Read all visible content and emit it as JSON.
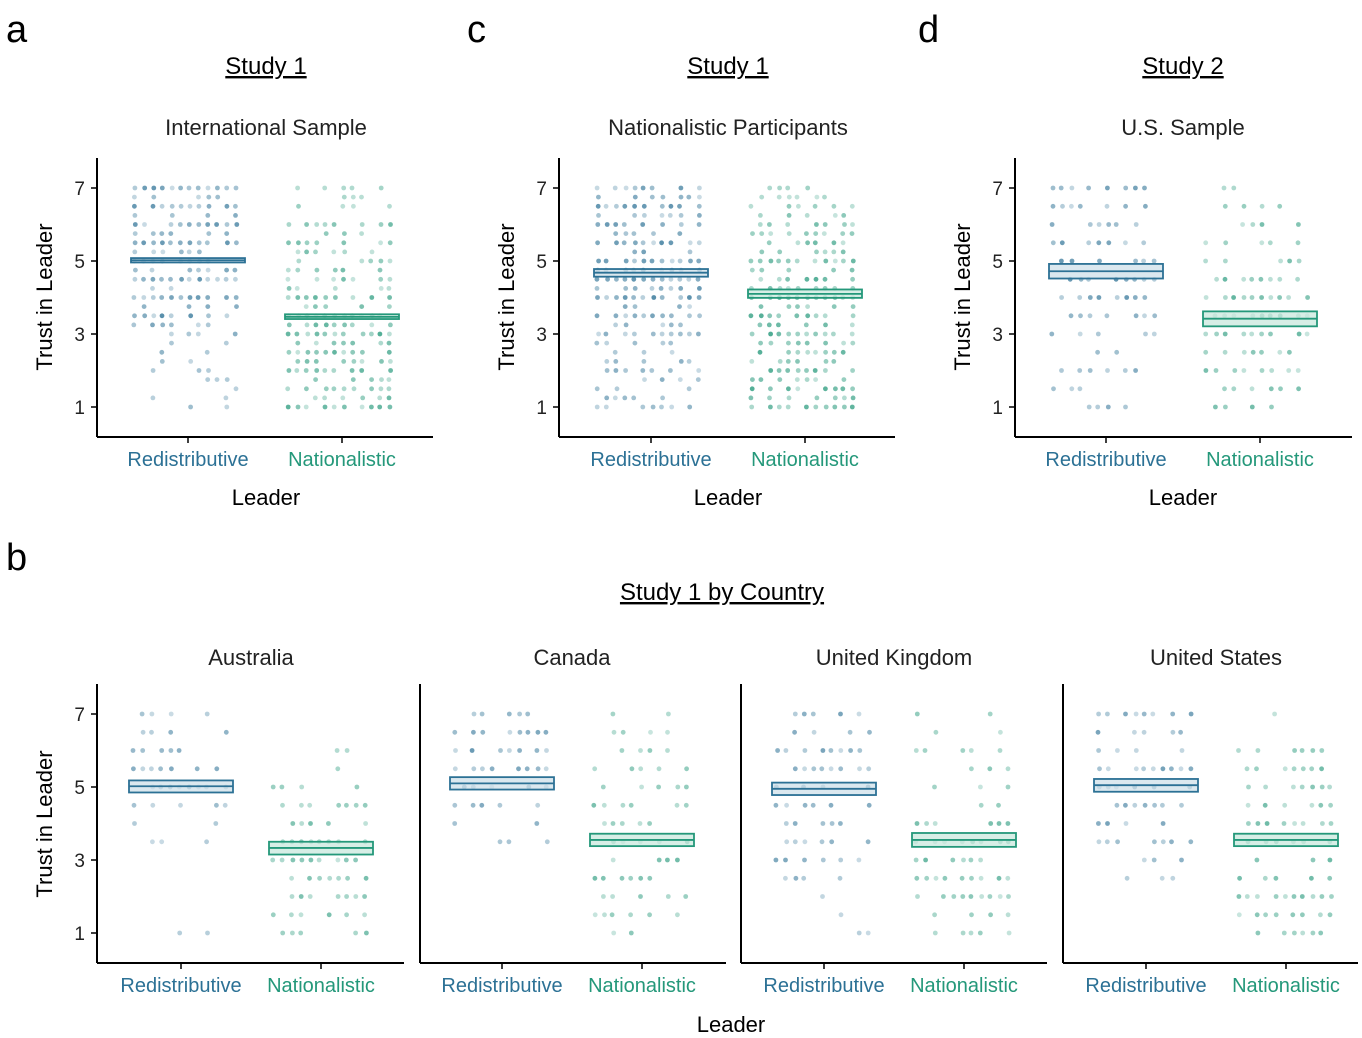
{
  "colors": {
    "redistributive": "#2c7195",
    "nationalistic": "#24987a"
  },
  "panels": [
    {
      "letter": "a",
      "study": "Study 1",
      "subtitle": "International Sample"
    },
    {
      "letter": "c",
      "study": "Study 1",
      "subtitle": "Nationalistic Participants"
    },
    {
      "letter": "d",
      "study": "Study 2",
      "subtitle": "U.S. Sample"
    }
  ],
  "panel_b": {
    "letter": "b",
    "study": "Study 1 by Country"
  },
  "chart_data": [
    {
      "type": "scatter",
      "title": "International Sample",
      "xlabel": "Leader",
      "ylabel": "Trust in Leader",
      "categories": [
        "Redistributive",
        "Nationalistic"
      ],
      "yticks": [
        1,
        3,
        5,
        7
      ],
      "ylim": [
        0.2,
        7.8
      ],
      "means": [
        5.02,
        3.47
      ],
      "ci": [
        [
          4.96,
          5.08
        ],
        [
          3.41,
          3.54
        ]
      ],
      "density": [
        [
          0.25,
          0.2,
          0.15,
          0.25,
          0.25,
          0.2,
          0.35,
          0.3,
          0.45,
          0.5,
          0.7,
          0.5,
          0.85,
          0.55,
          1.0,
          0.5,
          0.8,
          0.4,
          0.85,
          0.45,
          0.85,
          0.4,
          0.8,
          0.4,
          0.85
        ],
        [
          0.85,
          0.55,
          0.6,
          0.55,
          0.85,
          0.6,
          0.8,
          0.6,
          0.85,
          0.6,
          0.85,
          0.55,
          0.85,
          0.5,
          0.7,
          0.5,
          0.6,
          0.45,
          0.5,
          0.35,
          0.45,
          0.25,
          0.3,
          0.25,
          0.35
        ]
      ]
    },
    {
      "type": "scatter",
      "title": "Nationalistic Participants",
      "xlabel": "Leader",
      "ylabel": "Trust in Leader",
      "categories": [
        "Redistributive",
        "Nationalistic"
      ],
      "yticks": [
        1,
        3,
        5,
        7
      ],
      "ylim": [
        0.2,
        7.8
      ],
      "means": [
        4.68,
        4.1
      ],
      "ci": [
        [
          4.57,
          4.78
        ],
        [
          3.99,
          4.22
        ]
      ],
      "density": [
        [
          0.4,
          0.3,
          0.25,
          0.3,
          0.4,
          0.3,
          0.45,
          0.35,
          0.6,
          0.5,
          0.85,
          0.6,
          0.95,
          0.6,
          0.9,
          0.55,
          0.85,
          0.5,
          0.85,
          0.5,
          0.85,
          0.5,
          0.85,
          0.5,
          0.85
        ],
        [
          0.8,
          0.55,
          0.75,
          0.55,
          0.8,
          0.55,
          0.8,
          0.6,
          0.85,
          0.6,
          0.8,
          0.55,
          0.85,
          0.5,
          0.75,
          0.45,
          0.6,
          0.45,
          0.55,
          0.45,
          0.5,
          0.4,
          0.4,
          0.3,
          0.3
        ]
      ]
    },
    {
      "type": "scatter",
      "title": "U.S. Sample",
      "xlabel": "Leader",
      "ylabel": "Trust in Leader",
      "categories": [
        "Redistributive",
        "Nationalistic"
      ],
      "yticks": [
        1,
        3,
        5,
        7
      ],
      "ylim": [
        0.2,
        7.8
      ],
      "means": [
        4.72,
        3.42
      ],
      "ci": [
        [
          4.52,
          4.92
        ],
        [
          3.21,
          3.62
        ]
      ],
      "density": [
        [
          0.35,
          0.0,
          0.2,
          0.0,
          0.35,
          0.0,
          0.35,
          0.0,
          0.45,
          0.0,
          0.55,
          0.0,
          0.75,
          0.0,
          0.65,
          0.0,
          0.7,
          0.0,
          0.65,
          0.0,
          0.55,
          0.0,
          0.45,
          0.0,
          0.6
        ],
        [
          0.55,
          0.0,
          0.45,
          0.0,
          0.5,
          0.0,
          0.5,
          0.0,
          0.65,
          0.0,
          0.75,
          0.0,
          0.8,
          0.0,
          0.6,
          0.0,
          0.55,
          0.0,
          0.5,
          0.0,
          0.5,
          0.0,
          0.45,
          0.0,
          0.4
        ]
      ]
    },
    {
      "type": "scatter",
      "title": "Australia",
      "xlabel": "Leader",
      "ylabel": "Trust in Leader",
      "categories": [
        "Redistributive",
        "Nationalistic"
      ],
      "yticks": [
        1,
        3,
        5,
        7
      ],
      "ylim": [
        0.2,
        7.8
      ],
      "means": [
        5.02,
        3.33
      ],
      "ci": [
        [
          4.85,
          5.18
        ],
        [
          3.15,
          3.5
        ]
      ],
      "density": [
        [
          0.2,
          0.0,
          0.0,
          0.0,
          0.0,
          0.0,
          0.0,
          0.0,
          0.0,
          0.0,
          0.25,
          0.0,
          0.2,
          0.0,
          0.35,
          0.0,
          0.5,
          0.0,
          0.55,
          0.0,
          0.55,
          0.0,
          0.55,
          0.0,
          0.3
        ],
        [
          0.35,
          0.0,
          0.4,
          0.0,
          0.45,
          0.0,
          0.55,
          0.0,
          0.55,
          0.0,
          0.55,
          0.0,
          0.6,
          0.0,
          0.45,
          0.0,
          0.35,
          0.0,
          0.2,
          0.0,
          0.25,
          0.0,
          0.0,
          0.0,
          0.15
        ]
      ]
    },
    {
      "type": "scatter",
      "title": "Canada",
      "xlabel": "Leader",
      "ylabel": "Trust in Leader",
      "categories": [
        "Redistributive",
        "Nationalistic"
      ],
      "yticks": [
        1,
        3,
        5,
        7
      ],
      "ylim": [
        0.2,
        7.8
      ],
      "means": [
        5.1,
        3.55
      ],
      "ci": [
        [
          4.93,
          5.27
        ],
        [
          3.38,
          3.72
        ]
      ],
      "density": [
        [
          0.0,
          0.0,
          0.0,
          0.0,
          0.0,
          0.0,
          0.0,
          0.0,
          0.0,
          0.0,
          0.25,
          0.0,
          0.35,
          0.0,
          0.5,
          0.0,
          0.5,
          0.0,
          0.55,
          0.0,
          0.6,
          0.0,
          0.55,
          0.0,
          0.45
        ],
        [
          0.3,
          0.0,
          0.4,
          0.0,
          0.45,
          0.0,
          0.5,
          0.0,
          0.5,
          0.0,
          0.55,
          0.0,
          0.6,
          0.0,
          0.5,
          0.0,
          0.4,
          0.0,
          0.3,
          0.0,
          0.2,
          0.0,
          0.2,
          0.0,
          0.2
        ]
      ]
    },
    {
      "type": "scatter",
      "title": "United Kingdom",
      "xlabel": "Leader",
      "ylabel": "Trust in Leader",
      "categories": [
        "Redistributive",
        "Nationalistic"
      ],
      "yticks": [
        1,
        3,
        5,
        7
      ],
      "ylim": [
        0.2,
        7.8
      ],
      "means": [
        4.95,
        3.55
      ],
      "ci": [
        [
          4.78,
          5.12
        ],
        [
          3.36,
          3.74
        ]
      ],
      "density": [
        [
          0.25,
          0.0,
          0.1,
          0.0,
          0.25,
          0.0,
          0.4,
          0.0,
          0.45,
          0.0,
          0.5,
          0.0,
          0.55,
          0.0,
          0.5,
          0.0,
          0.55,
          0.0,
          0.55,
          0.0,
          0.55,
          0.0,
          0.45,
          0.0,
          0.45
        ],
        [
          0.45,
          0.0,
          0.45,
          0.0,
          0.5,
          0.0,
          0.55,
          0.0,
          0.55,
          0.0,
          0.6,
          0.0,
          0.55,
          0.0,
          0.45,
          0.0,
          0.45,
          0.0,
          0.4,
          0.0,
          0.35,
          0.0,
          0.2,
          0.0,
          0.2
        ]
      ]
    },
    {
      "type": "scatter",
      "title": "United States",
      "xlabel": "Leader",
      "ylabel": "Trust in Leader",
      "categories": [
        "Redistributive",
        "Nationalistic"
      ],
      "yticks": [
        1,
        3,
        5,
        7
      ],
      "ylim": [
        0.2,
        7.8
      ],
      "means": [
        5.05,
        3.55
      ],
      "ci": [
        [
          4.87,
          5.22
        ],
        [
          3.38,
          3.72
        ]
      ],
      "density": [
        [
          0.2,
          0.0,
          0.0,
          0.0,
          0.0,
          0.0,
          0.25,
          0.0,
          0.4,
          0.0,
          0.5,
          0.0,
          0.55,
          0.0,
          0.55,
          0.0,
          0.6,
          0.0,
          0.6,
          0.0,
          0.55,
          0.0,
          0.55,
          0.0,
          0.45
        ],
        [
          0.45,
          0.0,
          0.45,
          0.0,
          0.55,
          0.0,
          0.55,
          0.0,
          0.6,
          0.0,
          0.6,
          0.0,
          0.6,
          0.0,
          0.5,
          0.0,
          0.55,
          0.0,
          0.45,
          0.0,
          0.45,
          0.0,
          0.2,
          0.0,
          0.1
        ]
      ]
    }
  ]
}
